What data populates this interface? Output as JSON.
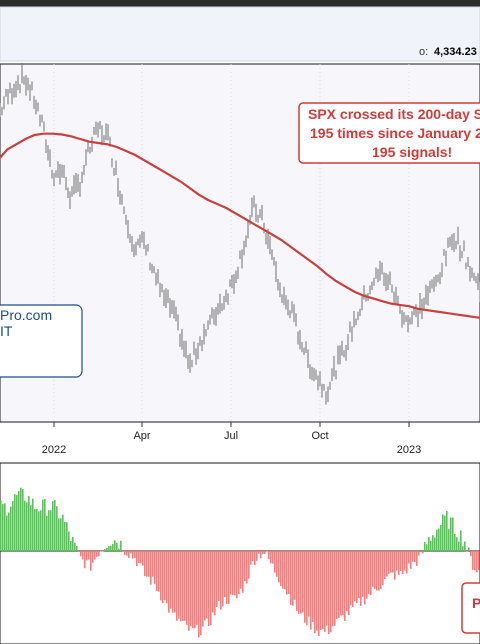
{
  "header": {
    "readout_symbol": "o:",
    "readout_value": "4,334.23"
  },
  "annotation": {
    "lines": [
      "SPX crossed its 200-day S",
      "195 times since January 2",
      "195 signals!"
    ]
  },
  "logo_box": {
    "lines": [
      "Pro.com",
      "IT"
    ]
  },
  "lower_panel": {
    "label_fragment": "P"
  },
  "colors": {
    "price_bars": "#6f6f6f",
    "sma_line": "#c9403f",
    "annotation": "#d33b3b",
    "histogram_positive": "#5fbf5f",
    "histogram_negative": "#f08080",
    "panel_background": "#f7f7fb",
    "logo_border": "#1f4e8a"
  },
  "chart_data": {
    "type": "line",
    "x_ticks": [
      "2022",
      "Apr",
      "Jul",
      "Oct",
      "2023"
    ],
    "series": [
      {
        "values": [
          4630,
          4700,
          4750,
          4766,
          4690,
          4570,
          4410,
          4420,
          4320,
          4380,
          4500,
          4580,
          4550,
          4400,
          4250,
          4130,
          4150,
          4050,
          3950,
          3900,
          3800,
          3680,
          3770,
          3830,
          3900,
          3950,
          4030,
          4150,
          4280,
          4230,
          4100,
          3950,
          3900,
          3800,
          3700,
          3640,
          3590,
          3680,
          3750,
          3850,
          3930,
          4000,
          4040,
          3990,
          3900,
          3850,
          3890,
          3950,
          4000,
          4100,
          4180,
          4110,
          4030,
          3960
        ]
      },
      {
        "values": [
          4460,
          4500,
          4520,
          4540,
          4555,
          4560,
          4560,
          4557,
          4550,
          4540,
          4530,
          4525,
          4520,
          4510,
          4495,
          4480,
          4460,
          4440,
          4420,
          4400,
          4380,
          4355,
          4330,
          4310,
          4295,
          4280,
          4260,
          4240,
          4220,
          4200,
          4180,
          4160,
          4135,
          4110,
          4085,
          4060,
          4030,
          4005,
          3985,
          3965,
          3950,
          3940,
          3930,
          3920,
          3915,
          3910,
          3900,
          3895,
          3890,
          3885,
          3880,
          3875,
          3870,
          3865
        ]
      }
    ],
    "histogram": [
      4,
      4,
      5,
      5,
      4,
      4,
      4,
      3,
      1,
      -1,
      -2,
      0,
      1,
      1,
      0,
      -1,
      -3,
      -4,
      -6,
      -8,
      -9,
      -10,
      -10,
      -9,
      -7,
      -6,
      -6,
      -4,
      -1,
      0,
      -2,
      -4,
      -6,
      -8,
      -9,
      -10,
      -10,
      -9,
      -8,
      -7,
      -6,
      -5,
      -4,
      -3,
      -3,
      -2,
      -1,
      1,
      2,
      3,
      2,
      1,
      -2,
      -3
    ]
  }
}
